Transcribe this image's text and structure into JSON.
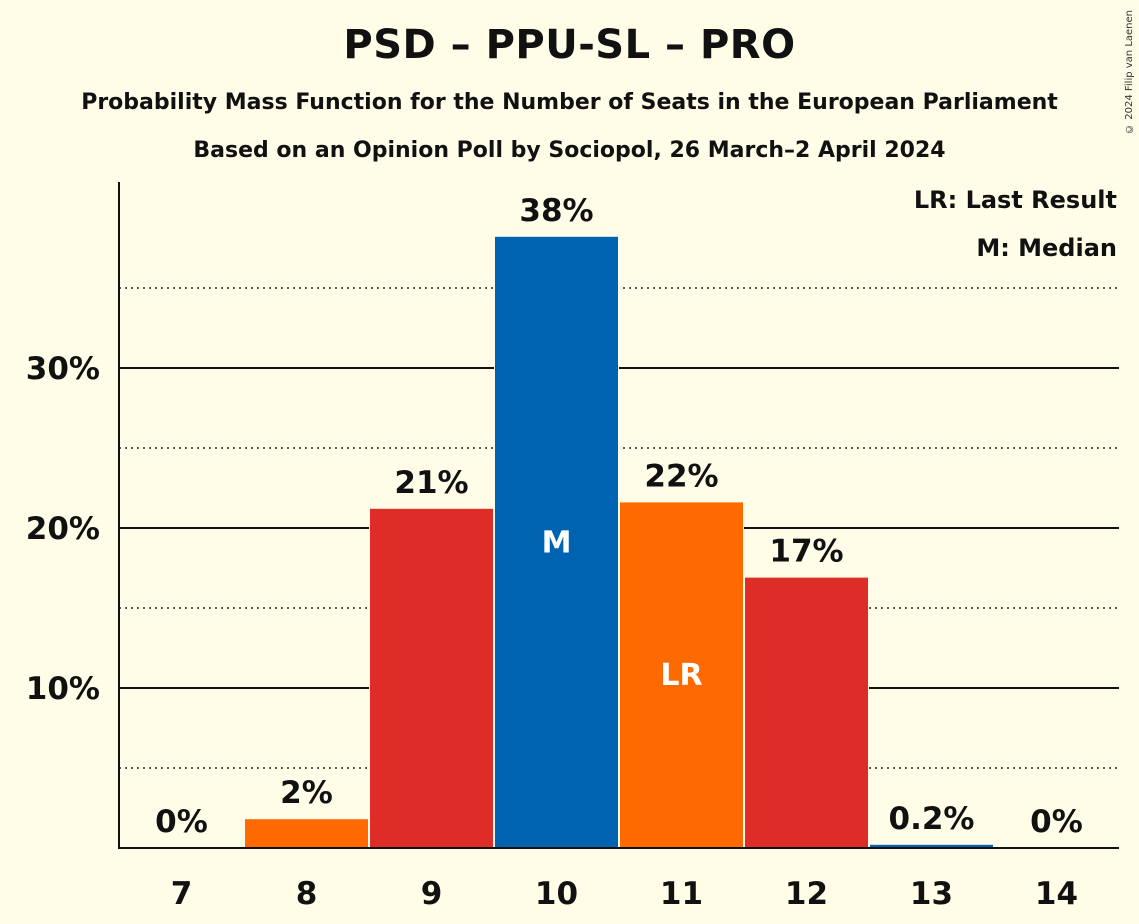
{
  "header": {
    "title": "PSD – PPU-SL – PRO",
    "subtitle": "Probability Mass Function for the Number of Seats in the European Parliament",
    "subtitle2": "Based on an Opinion Poll by Sociopol, 26 March–2 April 2024",
    "copyright": "© 2024 Filip van Laenen"
  },
  "legend": {
    "lr": "LR: Last Result",
    "m": "M: Median"
  },
  "chart_data": {
    "type": "bar",
    "categories": [
      "7",
      "8",
      "9",
      "10",
      "11",
      "12",
      "13",
      "14"
    ],
    "values": [
      0,
      1.8,
      21.2,
      38.2,
      21.6,
      16.9,
      0.2,
      0
    ],
    "data_labels": [
      "0%",
      "2%",
      "21%",
      "38%",
      "22%",
      "17%",
      "0.2%",
      "0%"
    ],
    "bar_colors": [
      "#FF6A00",
      "#FF6A00",
      "#DE2D26",
      "#0063B1",
      "#FF6A00",
      "#DE2D26",
      "#0063B1",
      "#FF6A00"
    ],
    "markers": {
      "3": "M",
      "4": "LR"
    },
    "y_ticks": [
      {
        "value": 10,
        "label": "10%"
      },
      {
        "value": 20,
        "label": "20%"
      },
      {
        "value": 30,
        "label": "30%"
      }
    ],
    "minor_grid": [
      5,
      15,
      25,
      35
    ],
    "ylim": [
      0,
      41.5
    ],
    "xlabel": "",
    "ylabel": "",
    "legend_position": "top-right",
    "grid": true
  }
}
